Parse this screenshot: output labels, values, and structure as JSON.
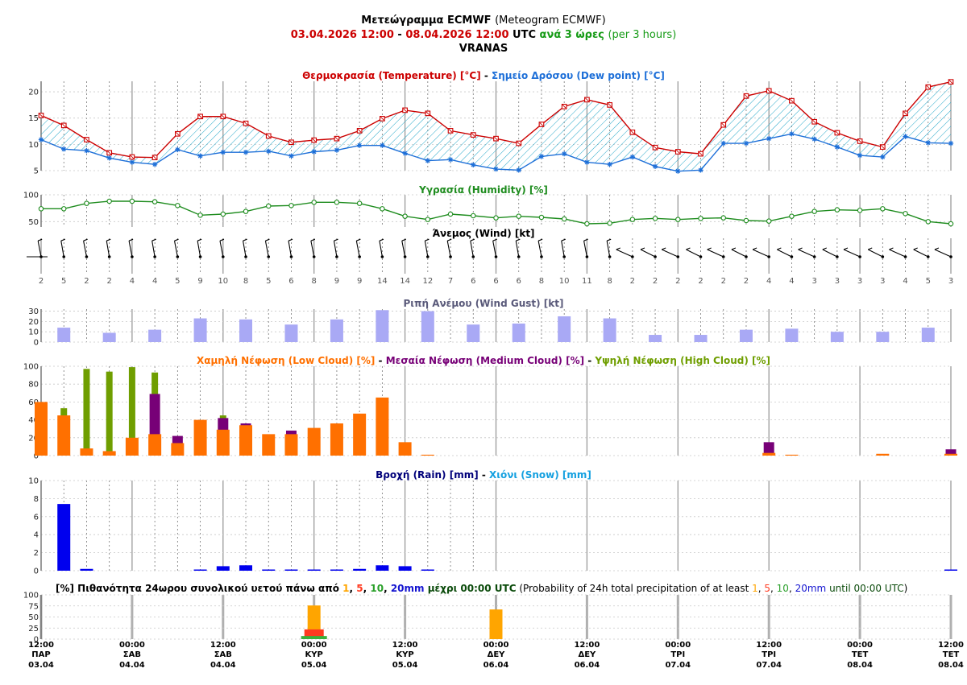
{
  "header": {
    "title_gr": "Μετεώγραμμα ECMWF",
    "title_en": "(Meteogram ECMWF)",
    "date_start": "03.04.2026 12:00",
    "dash": "-",
    "date_end": "08.04.2026 12:00",
    "utc": "UTC",
    "step_gr": "ανά 3 ώρες",
    "step_en": "(per 3 hours)",
    "location": "VRANAS"
  },
  "colors": {
    "temperature": "#cc0000",
    "dewpoint": "#1d6fd8",
    "humidity": "#1e8c1e",
    "gust": "#a9a9f5",
    "gust_title": "#5a5a7a",
    "low_cloud": "#ff7000",
    "medium_cloud": "#770077",
    "high_cloud": "#6f9e00",
    "rain": "#0000ee",
    "snow": "#14a0e0",
    "rain_title": "#00007a",
    "p1": "#ffa500",
    "p5": "#ff3a20",
    "p10": "#3ab03a",
    "p20": "#1414d0",
    "hatch": "#22a6c8"
  },
  "panels": {
    "temperature": {
      "title_temp": "Θερμοκρασία (Temperature) [°C]",
      "sep": " - ",
      "title_dew": "Σημείο Δρόσου (Dew point) [°C]",
      "yticks": [
        "5",
        "10",
        "15",
        "20"
      ]
    },
    "humidity": {
      "title": "Υγρασία (Humidity) [%]",
      "yticks": [
        "50",
        "100"
      ]
    },
    "wind": {
      "title": "Άνεμος (Wind) [kt]"
    },
    "gust": {
      "title": "Ριπή Ανέμου (Wind Gust) [kt]",
      "yticks": [
        "0",
        "10",
        "20",
        "30"
      ]
    },
    "cloud": {
      "title_low": "Χαμηλή Νέφωση (Low Cloud) [%]",
      "sep": " - ",
      "title_medium": "Μεσαία Νέφωση (Medium Cloud) [%]",
      "title_high": "Υψηλή Νέφωση (High Cloud) [%]",
      "yticks": [
        "0",
        "20",
        "40",
        "60",
        "80",
        "100"
      ]
    },
    "rain": {
      "title_rain": "Βροχή (Rain) [mm]",
      "sep": " - ",
      "title_snow": "Χιόνι (Snow) [mm]",
      "yticks": [
        "0",
        "2",
        "4",
        "6",
        "8",
        "10"
      ]
    },
    "probability": {
      "t_prefix": "[%] Πιθανότητα 24ωρου συνολικού υετού πάνω από ",
      "t1": "1",
      "c1": ", ",
      "t5": "5",
      "c2": ", ",
      "t10": "10",
      "c3": ", ",
      "t20": "20mm",
      "t_until": " μέχρι 00:00 UTC",
      "e_prefix": " (Probability of 24h total precipitation of at least ",
      "e1": "1",
      "ec1": ", ",
      "e5": "5",
      "ec2": ", ",
      "e10": "10",
      "ec3": ", ",
      "e20": "20mm",
      "e_until": " until 00:00 UTC",
      "e_close": ")",
      "yticks": [
        "0",
        "25",
        "50",
        "75",
        "100"
      ]
    }
  },
  "chart_data": {
    "type": "meteogram",
    "x_times": [
      "12:00",
      "15:00",
      "18:00",
      "21:00",
      "00:00",
      "03:00",
      "06:00",
      "09:00",
      "12:00",
      "15:00",
      "18:00",
      "21:00",
      "00:00",
      "03:00",
      "06:00",
      "09:00",
      "12:00",
      "15:00",
      "18:00",
      "21:00",
      "00:00",
      "03:00",
      "06:00",
      "09:00",
      "12:00",
      "15:00",
      "18:00",
      "21:00",
      "00:00",
      "03:00",
      "06:00",
      "09:00",
      "12:00",
      "15:00",
      "18:00",
      "21:00",
      "00:00",
      "03:00",
      "06:00",
      "09:00",
      "12:00"
    ],
    "temperature": [
      15.5,
      13.6,
      10.9,
      8.4,
      7.6,
      7.5,
      12.0,
      15.3,
      15.3,
      14.0,
      11.6,
      10.4,
      10.8,
      11.1,
      12.6,
      14.9,
      16.5,
      15.9,
      12.6,
      11.8,
      11.1,
      10.2,
      13.8,
      17.2,
      18.5,
      17.5,
      12.3,
      9.4,
      8.6,
      8.2,
      13.7,
      19.2,
      20.2,
      18.3,
      14.3,
      12.2,
      10.6,
      9.5,
      15.9,
      20.9,
      21.9
    ],
    "dewpoint": [
      10.9,
      9.1,
      8.8,
      7.4,
      6.6,
      6.2,
      9.0,
      7.8,
      8.5,
      8.5,
      8.7,
      7.8,
      8.6,
      8.9,
      9.8,
      9.8,
      8.3,
      6.9,
      7.1,
      6.1,
      5.3,
      5.1,
      7.7,
      8.2,
      6.6,
      6.2,
      7.6,
      5.8,
      4.9,
      5.1,
      10.2,
      10.2,
      11.1,
      12.0,
      11.0,
      9.5,
      7.9,
      7.6,
      11.5,
      10.3,
      10.2
    ],
    "humidity": [
      74,
      74,
      84,
      88,
      88,
      87,
      80,
      62,
      64,
      69,
      79,
      80,
      86,
      86,
      84,
      74,
      60,
      54,
      64,
      61,
      57,
      60,
      58,
      55,
      46,
      47,
      54,
      56,
      54,
      56,
      57,
      52,
      51,
      60,
      69,
      72,
      71,
      74,
      65,
      50,
      46
    ],
    "wind_speed": [
      2,
      5,
      2,
      2,
      4,
      4,
      5,
      9,
      10,
      8,
      5,
      6,
      8,
      9,
      9,
      14,
      14,
      12,
      7,
      6,
      6,
      6,
      8,
      10,
      11,
      8,
      2,
      2,
      2,
      2,
      2,
      2,
      4,
      4,
      3,
      3,
      3,
      3,
      4,
      5,
      3
    ],
    "wind_gust": [
      null,
      14,
      null,
      9,
      null,
      12,
      null,
      23,
      null,
      22,
      null,
      17,
      null,
      22,
      null,
      31,
      null,
      30,
      null,
      17,
      null,
      18,
      null,
      25,
      null,
      23,
      null,
      7,
      null,
      7,
      null,
      12,
      null,
      13,
      null,
      10,
      null,
      10,
      null,
      14,
      null
    ],
    "low_cloud": [
      60,
      45,
      8,
      5,
      20,
      24,
      14,
      40,
      29,
      34,
      24,
      24,
      31,
      36,
      47,
      65,
      15,
      1,
      0,
      0,
      0,
      0,
      0,
      0,
      0,
      0,
      0,
      0,
      0,
      0,
      0,
      0,
      3,
      1,
      0,
      0,
      0,
      2,
      0,
      0,
      2
    ],
    "medium_cloud": [
      0,
      5,
      0,
      0,
      6,
      69,
      22,
      0,
      42,
      36,
      0,
      28,
      0,
      0,
      0,
      0,
      0,
      0,
      0,
      0,
      0,
      0,
      0,
      0,
      0,
      0,
      0,
      0,
      0,
      0,
      0,
      0,
      15,
      0,
      0,
      0,
      0,
      0,
      0,
      0,
      7
    ],
    "high_cloud": [
      0,
      53,
      97,
      94,
      99,
      93,
      0,
      0,
      45,
      0,
      0,
      0,
      0,
      0,
      0,
      0,
      0,
      0,
      0,
      0,
      0,
      0,
      0,
      0,
      0,
      0,
      0,
      0,
      0,
      0,
      0,
      0,
      0,
      0,
      0,
      0,
      0,
      0,
      0,
      0,
      0
    ],
    "rain": [
      null,
      7.4,
      0.2,
      null,
      null,
      null,
      null,
      0.1,
      0.5,
      0.6,
      0.1,
      0.1,
      0.1,
      0.1,
      0.2,
      0.6,
      0.5,
      0.1,
      null,
      null,
      null,
      null,
      null,
      null,
      null,
      null,
      null,
      null,
      null,
      null,
      null,
      null,
      null,
      null,
      null,
      null,
      null,
      null,
      null,
      null,
      0.1
    ],
    "snow": [],
    "precip_probability": [
      {
        "x_index": 12,
        "p1": 76,
        "p5": 22,
        "p10": 7,
        "p20": 0
      },
      {
        "x_index": 20,
        "p1": 67,
        "p5": 0,
        "p10": 0,
        "p20": 0
      }
    ],
    "ylim": {
      "temperature": [
        5,
        22
      ],
      "humidity": [
        40,
        100
      ],
      "gust": [
        0,
        32
      ],
      "cloud": [
        0,
        100
      ],
      "rain": [
        0,
        10
      ],
      "probability": [
        0,
        100
      ]
    },
    "x_tick_labels": [
      {
        "index": 0,
        "time": "12:00",
        "day": "ΠΑΡ",
        "date": "03.04"
      },
      {
        "index": 4,
        "time": "00:00",
        "day": "ΣΑΒ",
        "date": "04.04"
      },
      {
        "index": 8,
        "time": "12:00",
        "day": "ΣΑΒ",
        "date": "04.04"
      },
      {
        "index": 12,
        "time": "00:00",
        "day": "ΚΥΡ",
        "date": "05.04"
      },
      {
        "index": 16,
        "time": "12:00",
        "day": "ΚΥΡ",
        "date": "05.04"
      },
      {
        "index": 20,
        "time": "00:00",
        "day": "ΔΕΥ",
        "date": "06.04"
      },
      {
        "index": 24,
        "time": "12:00",
        "day": "ΔΕΥ",
        "date": "06.04"
      },
      {
        "index": 28,
        "time": "00:00",
        "day": "ΤΡΙ",
        "date": "07.04"
      },
      {
        "index": 32,
        "time": "12:00",
        "day": "ΤΡΙ",
        "date": "07.04"
      },
      {
        "index": 36,
        "time": "00:00",
        "day": "ΤΕΤ",
        "date": "08.04"
      },
      {
        "index": 40,
        "time": "12:00",
        "day": "ΤΕΤ",
        "date": "08.04"
      }
    ]
  }
}
